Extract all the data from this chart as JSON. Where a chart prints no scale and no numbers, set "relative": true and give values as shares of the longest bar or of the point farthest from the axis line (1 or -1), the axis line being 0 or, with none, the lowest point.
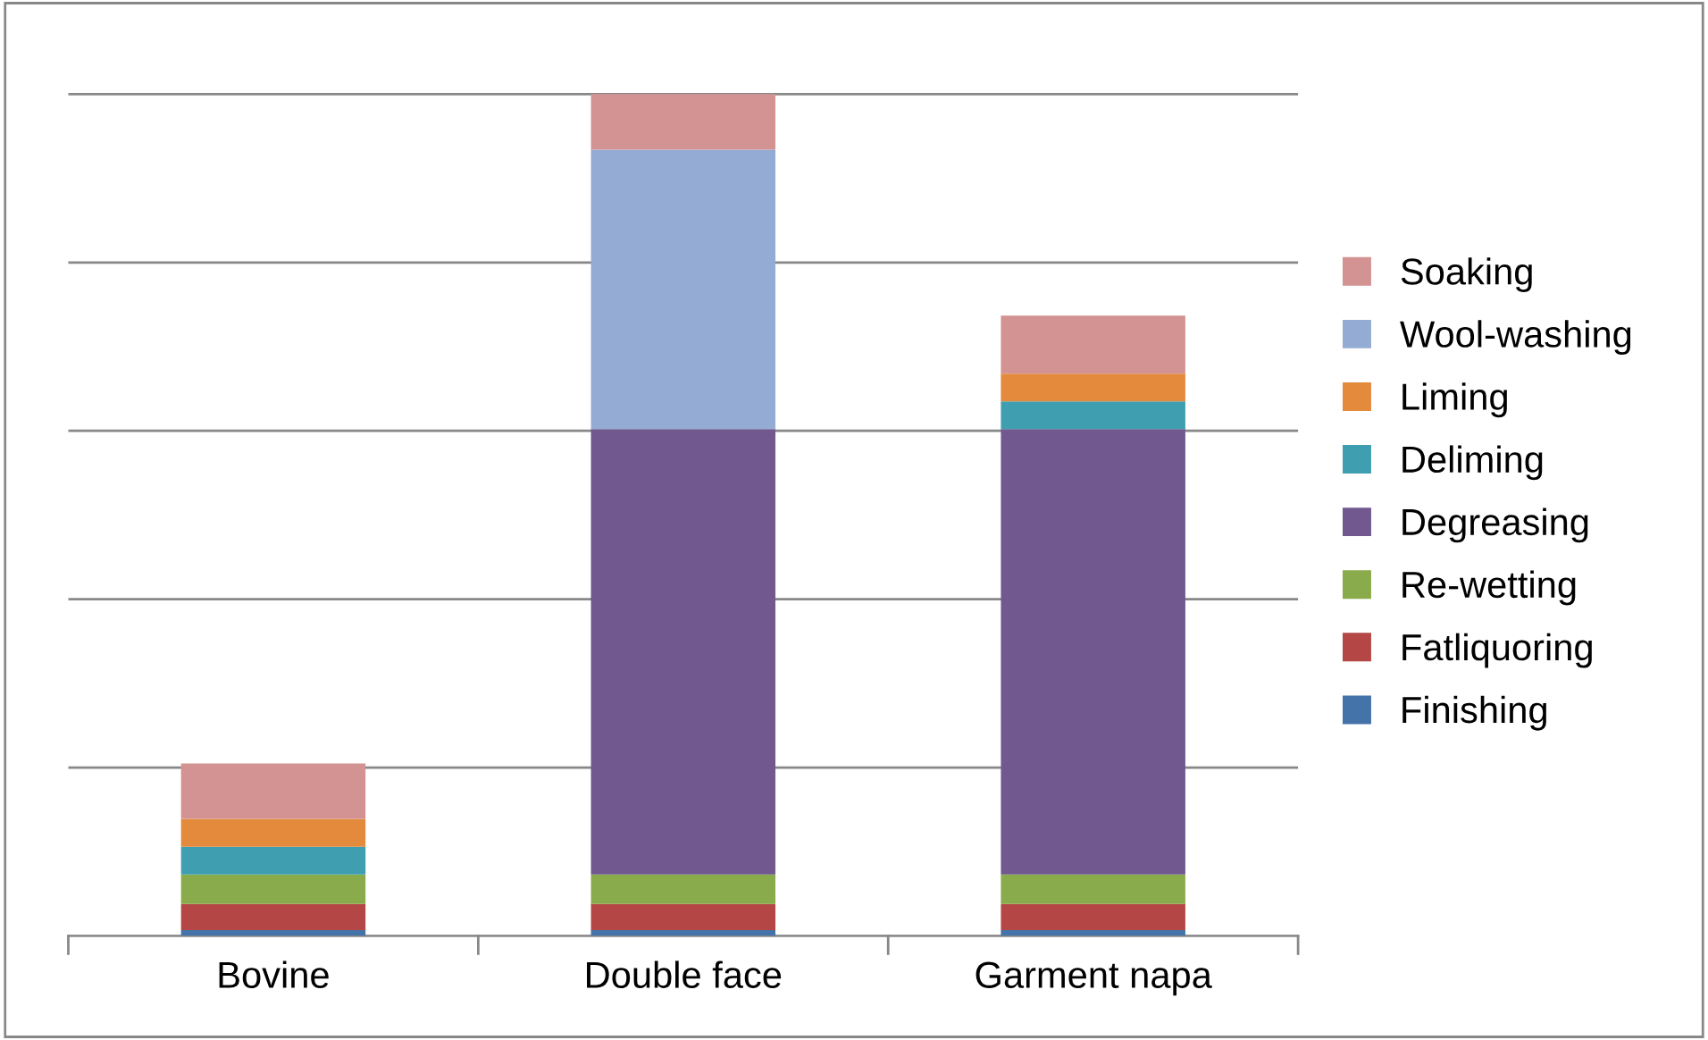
{
  "chart_data": {
    "type": "bar",
    "stacked": true,
    "relative": true,
    "grid": "y",
    "legend": "right",
    "categories": [
      "Bovine",
      "Double face",
      "Garment napa"
    ],
    "series": [
      {
        "name": "Finishing",
        "color": "#4473a9",
        "values": [
          0.007,
          0.007,
          0.007
        ]
      },
      {
        "name": "Fatliquoring",
        "color": "#b44745",
        "values": [
          0.031,
          0.031,
          0.031
        ]
      },
      {
        "name": "Re-wetting",
        "color": "#8aab4b",
        "values": [
          0.035,
          0.035,
          0.035
        ]
      },
      {
        "name": "Degreasing",
        "color": "#71588f",
        "values": [
          0,
          0.529,
          0.529
        ]
      },
      {
        "name": "Deliming",
        "color": "#3f9fb1",
        "values": [
          0.033,
          0,
          0.033
        ]
      },
      {
        "name": "Liming",
        "color": "#e48a3c",
        "values": [
          0.033,
          0,
          0.033
        ]
      },
      {
        "name": "Wool-washing",
        "color": "#94acd3",
        "values": [
          0,
          0.332,
          0
        ]
      },
      {
        "name": "Soaking",
        "color": "#d49393",
        "values": [
          0.066,
          0.066,
          0.069
        ]
      }
    ]
  }
}
